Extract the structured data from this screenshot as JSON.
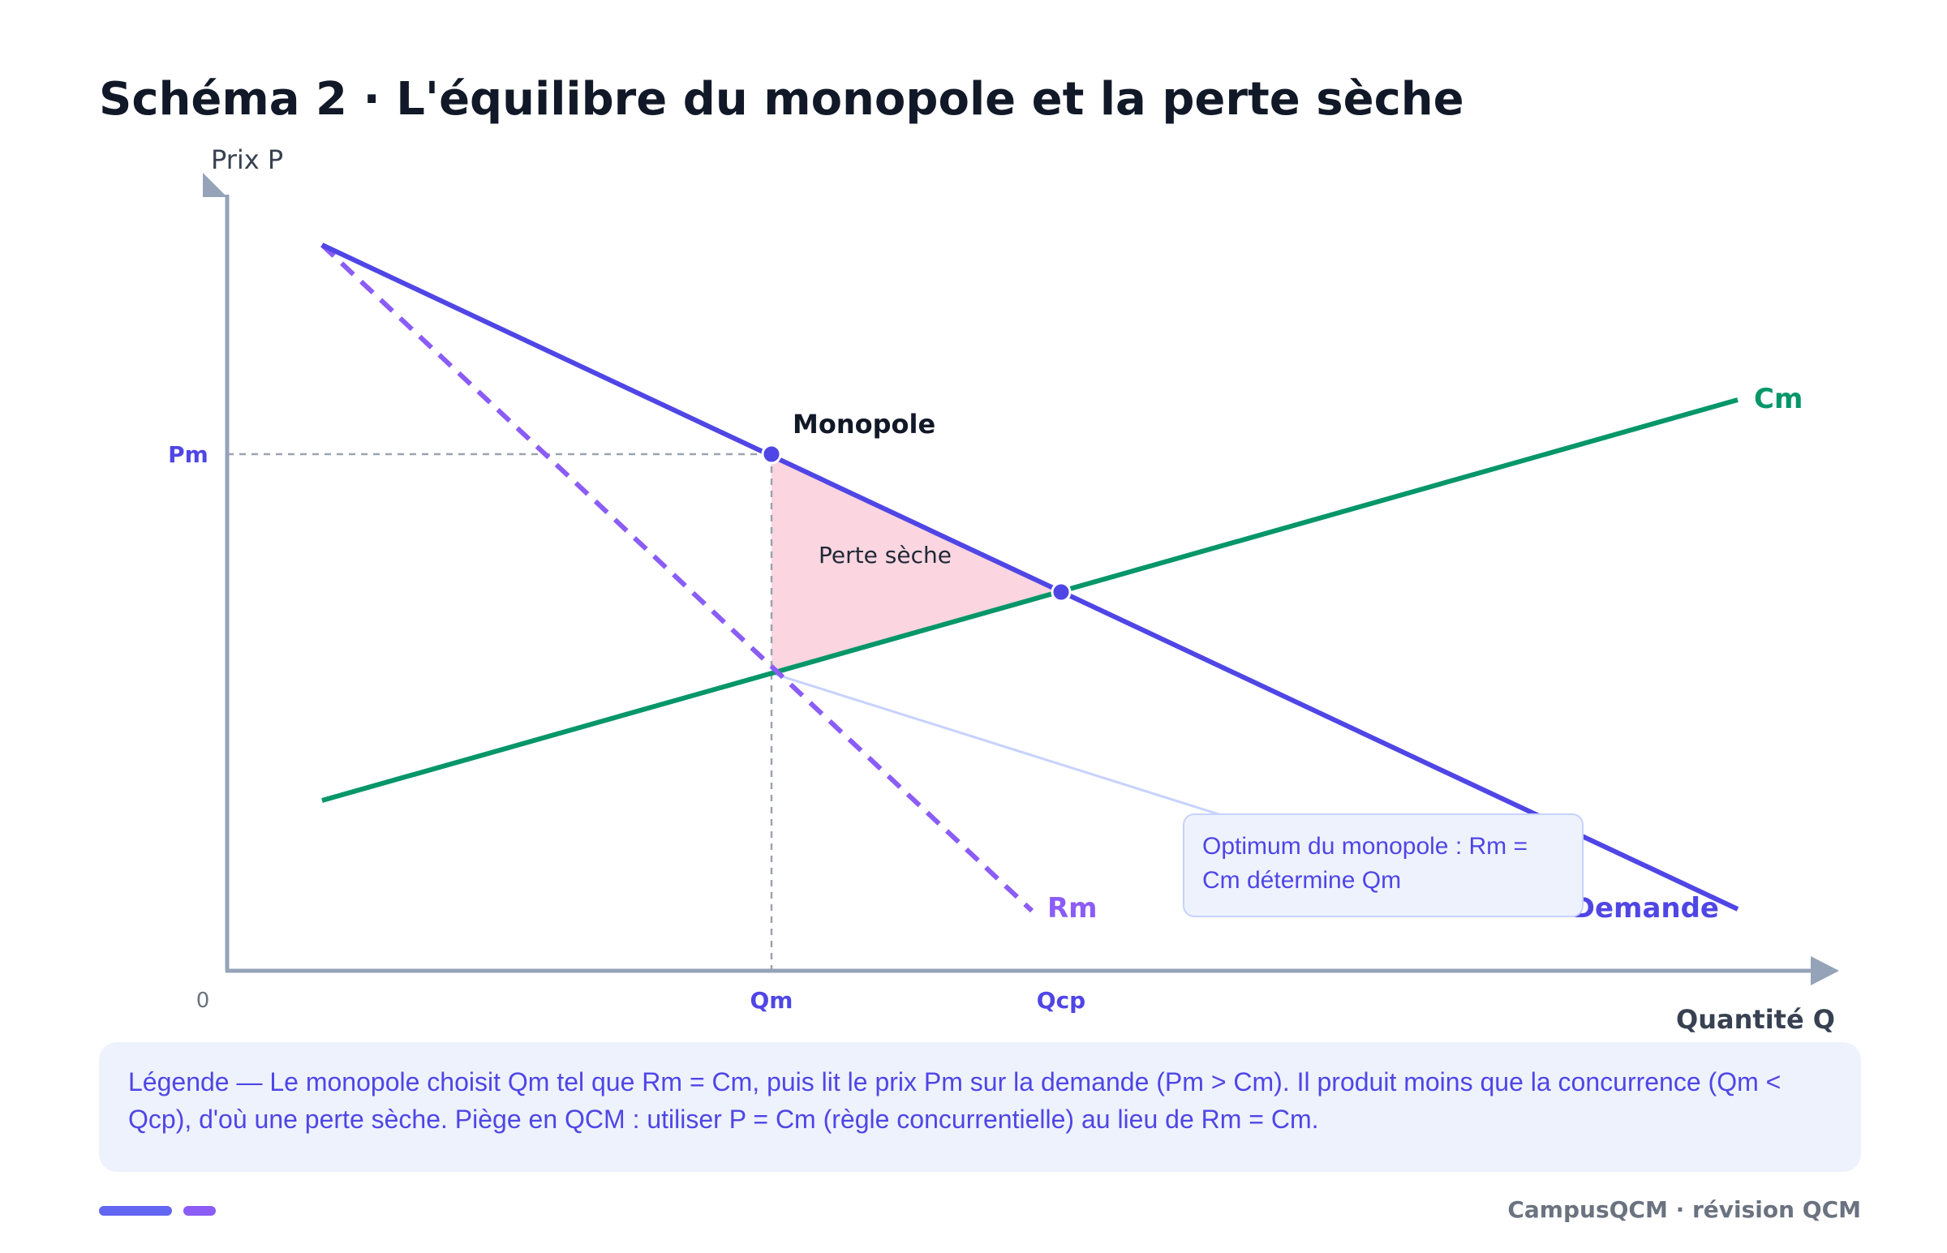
{
  "title": "Schéma 2 · L'équilibre du monopole et la perte sèche",
  "axes": {
    "y_label": "Prix P",
    "x_label": "Quantité Q",
    "origin_label": "0"
  },
  "ticks": {
    "pm": "Pm",
    "qm": "Qm",
    "qcp": "Qcp"
  },
  "curves": {
    "demand": "Demande",
    "marginal_revenue": "Rm",
    "marginal_cost": "Cm"
  },
  "points": {
    "monopoly": "Monopole"
  },
  "area_label": "Perte sèche",
  "callout": "Optimum du monopole : Rm = Cm détermine Qm",
  "legend": "Légende — Le monopole choisit Qm tel que Rm = Cm, puis lit le prix Pm sur la demande (Pm > Cm). Il produit moins que la concurrence (Qm < Qcp), d'où une perte sèche. Piège en QCM : utiliser P = Cm (règle concurrentielle) au lieu de Rm = Cm.",
  "footer": "CampusQCM · révision QCM",
  "colors": {
    "demand": "#4f46e5",
    "marginal_revenue": "#8b5cf6",
    "marginal_cost": "#059669",
    "deadweight_loss": "#fbd5df",
    "axis": "#94a3b8"
  }
}
